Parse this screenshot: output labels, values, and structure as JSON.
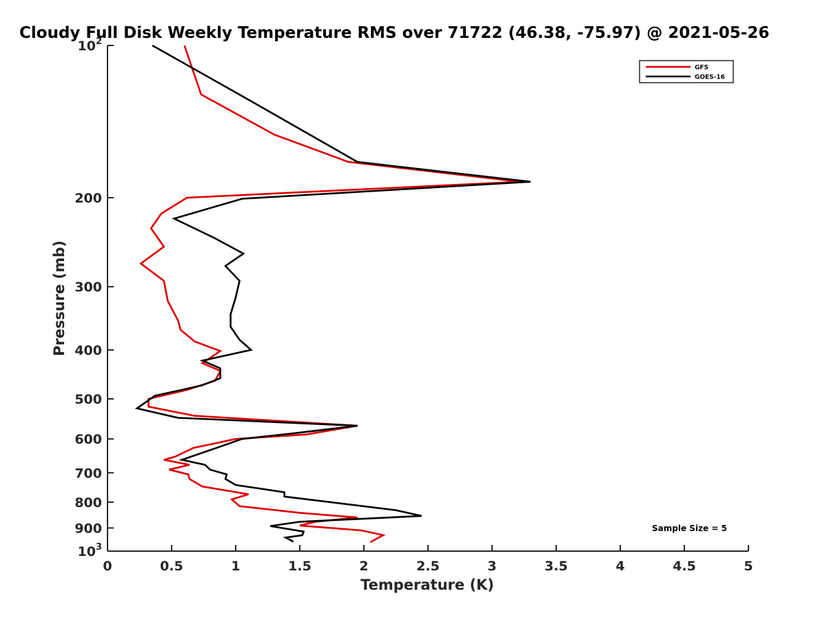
{
  "chart_data": {
    "type": "line",
    "title": "Cloudy Full Disk Weekly Temperature RMS over 71722 (46.38, -75.97) @ 2021-05-26",
    "xlabel": "Temperature (K)",
    "ylabel": "Pressure (mb)",
    "xlim": [
      0,
      5
    ],
    "ylim": [
      100,
      1000
    ],
    "y_scale": "log",
    "y_reversed": true,
    "grid": false,
    "legend_position": "top-right",
    "x_ticks": [
      "0",
      "0.5",
      "1",
      "1.5",
      "2",
      "2.5",
      "3",
      "3.5",
      "4",
      "4.5",
      "5"
    ],
    "y_ticks": [
      {
        "value": 100,
        "base": "10",
        "exp": "2"
      },
      {
        "value": 200,
        "label": "200"
      },
      {
        "value": 300,
        "label": "300"
      },
      {
        "value": 400,
        "label": "400"
      },
      {
        "value": 500,
        "label": "500"
      },
      {
        "value": 600,
        "label": "600"
      },
      {
        "value": 700,
        "label": "700"
      },
      {
        "value": 800,
        "label": "800"
      },
      {
        "value": 900,
        "label": "900"
      },
      {
        "value": 1000,
        "base": "10",
        "exp": "3"
      }
    ],
    "series": [
      {
        "name": "GFS",
        "color": "#dd0000",
        "points": [
          [
            0.6,
            100
          ],
          [
            0.73,
            125
          ],
          [
            1.3,
            150
          ],
          [
            1.88,
            170
          ],
          [
            3.22,
            186
          ],
          [
            0.62,
            200
          ],
          [
            0.42,
            215
          ],
          [
            0.34,
            230
          ],
          [
            0.44,
            250
          ],
          [
            0.26,
            270
          ],
          [
            0.44,
            292
          ],
          [
            0.47,
            320
          ],
          [
            0.55,
            350
          ],
          [
            0.57,
            365
          ],
          [
            0.68,
            385
          ],
          [
            0.88,
            402
          ],
          [
            0.74,
            425
          ],
          [
            0.88,
            440
          ],
          [
            0.84,
            460
          ],
          [
            0.62,
            480
          ],
          [
            0.32,
            500
          ],
          [
            0.32,
            518
          ],
          [
            0.68,
            540
          ],
          [
            1.95,
            565
          ],
          [
            1.55,
            588
          ],
          [
            1.0,
            600
          ],
          [
            0.67,
            625
          ],
          [
            0.53,
            650
          ],
          [
            0.44,
            660
          ],
          [
            0.64,
            675
          ],
          [
            0.48,
            690
          ],
          [
            0.63,
            705
          ],
          [
            0.64,
            720
          ],
          [
            0.74,
            745
          ],
          [
            1.1,
            772
          ],
          [
            0.97,
            790
          ],
          [
            1.03,
            815
          ],
          [
            1.5,
            840
          ],
          [
            1.95,
            858
          ],
          [
            1.62,
            875
          ],
          [
            1.5,
            890
          ],
          [
            1.98,
            910
          ],
          [
            2.15,
            930
          ],
          [
            2.05,
            960
          ]
        ]
      },
      {
        "name": "GOES-16",
        "color": "#000000",
        "points": [
          [
            0.35,
            100
          ],
          [
            1.1,
            128
          ],
          [
            1.95,
            170
          ],
          [
            3.3,
            186
          ],
          [
            1.05,
            201
          ],
          [
            0.52,
            220
          ],
          [
            0.83,
            240
          ],
          [
            1.06,
            258
          ],
          [
            0.92,
            273
          ],
          [
            1.03,
            292
          ],
          [
            1.0,
            315
          ],
          [
            0.96,
            340
          ],
          [
            0.96,
            360
          ],
          [
            1.03,
            382
          ],
          [
            1.12,
            400
          ],
          [
            0.74,
            420
          ],
          [
            0.88,
            435
          ],
          [
            0.88,
            455
          ],
          [
            0.74,
            470
          ],
          [
            0.37,
            493
          ],
          [
            0.23,
            522
          ],
          [
            0.55,
            545
          ],
          [
            1.95,
            565
          ],
          [
            1.45,
            585
          ],
          [
            1.05,
            600
          ],
          [
            0.85,
            625
          ],
          [
            0.58,
            660
          ],
          [
            0.76,
            675
          ],
          [
            0.8,
            690
          ],
          [
            0.93,
            705
          ],
          [
            0.92,
            720
          ],
          [
            1.0,
            740
          ],
          [
            1.38,
            765
          ],
          [
            1.38,
            780
          ],
          [
            2.25,
            830
          ],
          [
            2.45,
            852
          ],
          [
            1.5,
            875
          ],
          [
            1.27,
            892
          ],
          [
            1.53,
            915
          ],
          [
            1.52,
            930
          ],
          [
            1.39,
            940
          ],
          [
            1.45,
            958
          ]
        ]
      }
    ],
    "annotations": [
      "Sample Size = 5"
    ]
  }
}
